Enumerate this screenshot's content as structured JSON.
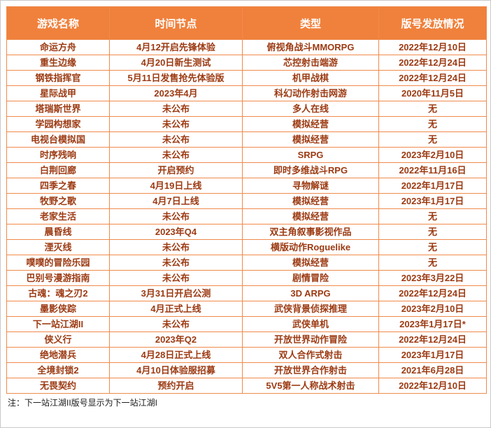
{
  "chart_data": {
    "type": "table",
    "title": "",
    "columns": [
      "游戏名称",
      "时间节点",
      "类型",
      "版号发放情况"
    ],
    "rows": [
      [
        "命运方舟",
        "4月12开启先锋体验",
        "俯视角战斗MMORPG",
        "2022年12月10日"
      ],
      [
        "重生边缘",
        "4月20日新生测试",
        "芯控射击端游",
        "2022年12月24日"
      ],
      [
        "钢铁指挥官",
        "5月11日发售抢先体验版",
        "机甲战棋",
        "2022年12月24日"
      ],
      [
        "星际战甲",
        "2023年4月",
        "科幻动作射击网游",
        "2020年11月5日"
      ],
      [
        "塔瑞斯世界",
        "未公布",
        "多人在线",
        "无"
      ],
      [
        "学园构想家",
        "未公布",
        "模拟经营",
        "无"
      ],
      [
        "电视台模拟国",
        "未公布",
        "模拟经营",
        "无"
      ],
      [
        "时序残响",
        "未公布",
        "SRPG",
        "2023年2月10日"
      ],
      [
        "白荆回廊",
        "开启预约",
        "即时多维战斗RPG",
        "2022年11月16日"
      ],
      [
        "四季之春",
        "4月19日上线",
        "寻物解谜",
        "2022年1月17日"
      ],
      [
        "牧野之歌",
        "4月7日上线",
        "模拟经营",
        "2023年1月17日"
      ],
      [
        "老家生活",
        "未公布",
        "模拟经营",
        "无"
      ],
      [
        "晨昏线",
        "2023年Q4",
        "双主角叙事影视作品",
        "无"
      ],
      [
        "湮灭线",
        "未公布",
        "横版动作Roguelike",
        "无"
      ],
      [
        "噗噗的冒险乐园",
        "未公布",
        "模拟经营",
        "无"
      ],
      [
        "巴别号漫游指南",
        "未公布",
        "剧情冒险",
        "2023年3月22日"
      ],
      [
        "古魂：魂之刃2",
        "3月31日开启公测",
        "3D ARPG",
        "2022年12月24日"
      ],
      [
        "墨影侠踪",
        "4月正式上线",
        "武侠背景侦探推理",
        "2023年2月10日"
      ],
      [
        "下一站江湖II",
        "未公布",
        "武侠单机",
        "2023年1月17日*"
      ],
      [
        "侠义行",
        "2023年Q2",
        "开放世界动作冒险",
        "2022年12月24日"
      ],
      [
        "绝地潜兵",
        "4月28日正式上线",
        "双人合作式射击",
        "2023年1月17日"
      ],
      [
        "全境封锁2",
        "4月10日体验服招募",
        "开放世界合作射击",
        "2021年6月28日"
      ],
      [
        "无畏契约",
        "预约开启",
        "5V5第一人称战术射击",
        "2022年12月10日"
      ]
    ]
  },
  "note": "注：下一站江湖II版号显示为下一站江湖I",
  "colors": {
    "header_bg": "#F0813C",
    "header_text": "#FFFFFF",
    "body_text": "#9C3A12",
    "border": "#F08A4B",
    "note_text": "#1A1A1A",
    "page_border": "#C8C8C8"
  }
}
